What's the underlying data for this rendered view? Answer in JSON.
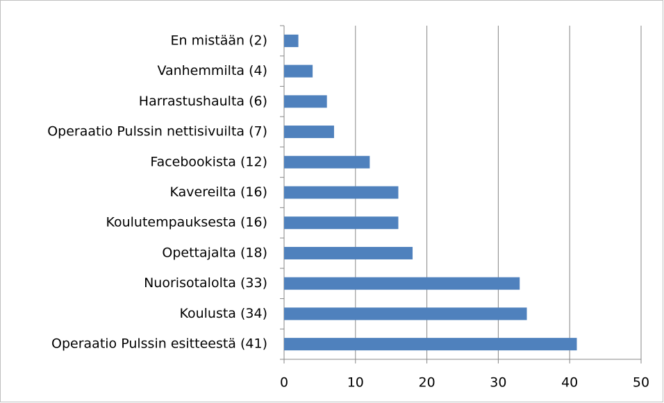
{
  "chart_data": {
    "type": "bar",
    "orientation": "horizontal",
    "categories": [
      "En mistään (2)",
      "Vanhemmilta (4)",
      "Harrastushaulta (6)",
      "Operaatio Pulssin nettisivuilta (7)",
      "Facebookista (12)",
      "Kavereilta (16)",
      "Koulutempauksesta (16)",
      "Opettajalta (18)",
      "Nuorisotalolta (33)",
      "Koulusta (34)",
      "Operaatio Pulssin esitteestä (41)"
    ],
    "values": [
      2,
      4,
      6,
      7,
      12,
      16,
      16,
      18,
      33,
      34,
      41
    ],
    "color": "#4f81bd",
    "xlim": [
      0,
      50
    ],
    "xticks": [
      0,
      10,
      20,
      30,
      40,
      50
    ],
    "grid": true
  }
}
